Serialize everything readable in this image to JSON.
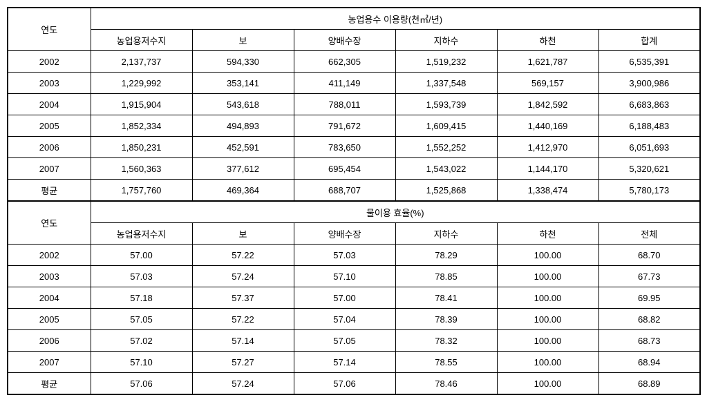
{
  "section1": {
    "yearHeader": "연도",
    "groupHeader": "농업용수 이용량(천㎥/년)",
    "columns": [
      "농업용저수지",
      "보",
      "양배수장",
      "지하수",
      "하천",
      "합계"
    ],
    "rows": [
      {
        "year": "2002",
        "values": [
          "2,137,737",
          "594,330",
          "662,305",
          "1,519,232",
          "1,621,787",
          "6,535,391"
        ]
      },
      {
        "year": "2003",
        "values": [
          "1,229,992",
          "353,141",
          "411,149",
          "1,337,548",
          "569,157",
          "3,900,986"
        ]
      },
      {
        "year": "2004",
        "values": [
          "1,915,904",
          "543,618",
          "788,011",
          "1,593,739",
          "1,842,592",
          "6,683,863"
        ]
      },
      {
        "year": "2005",
        "values": [
          "1,852,334",
          "494,893",
          "791,672",
          "1,609,415",
          "1,440,169",
          "6,188,483"
        ]
      },
      {
        "year": "2006",
        "values": [
          "1,850,231",
          "452,591",
          "783,650",
          "1,552,252",
          "1,412,970",
          "6,051,693"
        ]
      },
      {
        "year": "2007",
        "values": [
          "1,560,363",
          "377,612",
          "695,454",
          "1,543,022",
          "1,144,170",
          "5,320,621"
        ]
      },
      {
        "year": "평균",
        "values": [
          "1,757,760",
          "469,364",
          "688,707",
          "1,525,868",
          "1,338,474",
          "5,780,173"
        ]
      }
    ]
  },
  "section2": {
    "yearHeader": "연도",
    "groupHeader": "물이용 효율(%)",
    "columns": [
      "농업용저수지",
      "보",
      "양배수장",
      "지하수",
      "하천",
      "전체"
    ],
    "rows": [
      {
        "year": "2002",
        "values": [
          "57.00",
          "57.22",
          "57.03",
          "78.29",
          "100.00",
          "68.70"
        ]
      },
      {
        "year": "2003",
        "values": [
          "57.03",
          "57.24",
          "57.10",
          "78.85",
          "100.00",
          "67.73"
        ]
      },
      {
        "year": "2004",
        "values": [
          "57.18",
          "57.37",
          "57.00",
          "78.41",
          "100.00",
          "69.95"
        ]
      },
      {
        "year": "2005",
        "values": [
          "57.05",
          "57.22",
          "57.04",
          "78.39",
          "100.00",
          "68.82"
        ]
      },
      {
        "year": "2006",
        "values": [
          "57.02",
          "57.14",
          "57.05",
          "78.32",
          "100.00",
          "68.73"
        ]
      },
      {
        "year": "2007",
        "values": [
          "57.10",
          "57.27",
          "57.14",
          "78.55",
          "100.00",
          "68.94"
        ]
      },
      {
        "year": "평균",
        "values": [
          "57.06",
          "57.24",
          "57.06",
          "78.46",
          "100.00",
          "68.89"
        ]
      }
    ]
  }
}
